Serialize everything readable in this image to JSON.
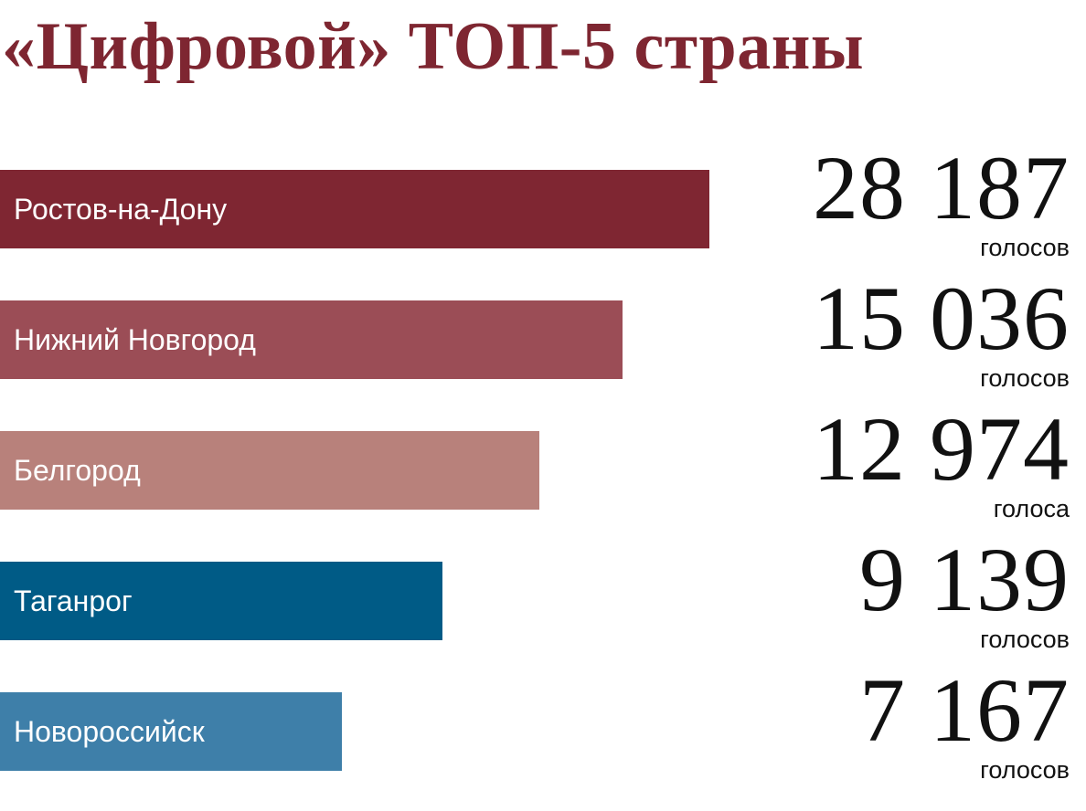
{
  "chart_data": {
    "type": "bar",
    "title": "«Цифровой» ТОП-5 страны",
    "title_color": "#7e2631",
    "categories": [
      "Ростов-на-Дону",
      "Нижний Новгород",
      "Белгород",
      "Таганрог",
      "Новороссийск"
    ],
    "values": [
      28187,
      15036,
      12974,
      9139,
      7167
    ],
    "value_labels": [
      "28 187",
      "15 036",
      "12 974",
      "9 139",
      "7 167"
    ],
    "unit_labels": [
      "голосов",
      "голосов",
      "голоса",
      "голосов",
      "голосов"
    ],
    "bar_colors": [
      "#7f2632",
      "#9b4d56",
      "#b8817b",
      "#005b86",
      "#3e7fa9"
    ],
    "label_color": "#ffffff",
    "orientation": "horizontal",
    "grid": false
  }
}
